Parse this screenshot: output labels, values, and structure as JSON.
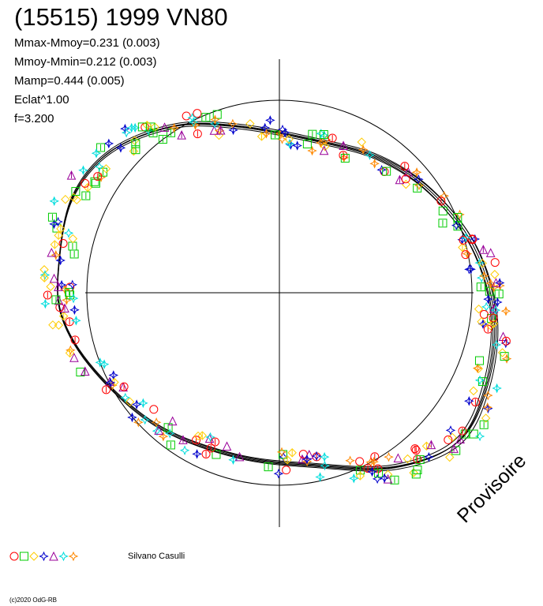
{
  "title": "(15515) 1999 VN80",
  "parameters": [
    "Mmax-Mmoy=0.231 (0.003)",
    "Mmoy-Mmin=0.212 (0.003)",
    "Mamp=0.444 (0.005)",
    "Eclat^1.00",
    "f=3.200"
  ],
  "legend": {
    "observer": "Silvano Casulli"
  },
  "watermark": "Provisoire",
  "copyright": "(c)2020 OdG-RB"
}
